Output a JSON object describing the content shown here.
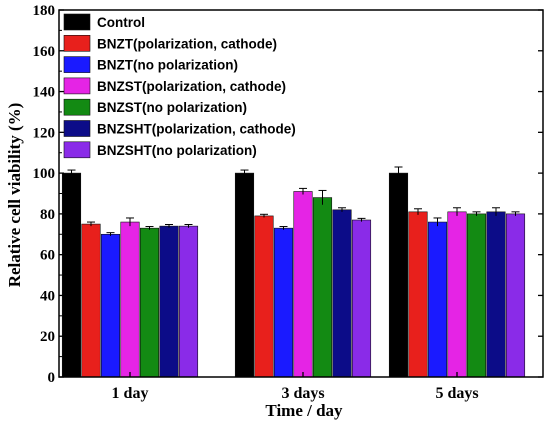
{
  "chart_data": {
    "type": "bar",
    "xlabel": "Time / day",
    "ylabel": "Relative cell viability (%)",
    "ylim": [
      0,
      180
    ],
    "yticks": [
      0,
      20,
      40,
      60,
      80,
      100,
      120,
      140,
      160,
      180
    ],
    "grid": false,
    "legend_position": "top-left",
    "categories": [
      "1 day",
      "3 days",
      "5 days"
    ],
    "series": [
      {
        "name": "Control",
        "color": "#000000",
        "values": [
          100,
          100,
          100
        ],
        "errors": [
          1.5,
          1.5,
          3
        ]
      },
      {
        "name": "BNZT(polarization, cathode)",
        "color": "#e8201c",
        "values": [
          75,
          79,
          81
        ],
        "errors": [
          1,
          0.8,
          1.5
        ]
      },
      {
        "name": "BNZT(no polarization)",
        "color": "#1a1aff",
        "values": [
          70,
          73,
          76
        ],
        "errors": [
          0.8,
          0.8,
          2
        ]
      },
      {
        "name": "BNZST(polarization, cathode)",
        "color": "#e524e5",
        "values": [
          76,
          91,
          81
        ],
        "errors": [
          2,
          1.5,
          2
        ]
      },
      {
        "name": "BNZST(no polarization)",
        "color": "#138a13",
        "values": [
          73,
          88,
          80
        ],
        "errors": [
          0.8,
          3.5,
          1
        ]
      },
      {
        "name": "BNZSHT(polarization, cathode)",
        "color": "#0c0c88",
        "values": [
          74,
          82,
          81
        ],
        "errors": [
          0.8,
          1,
          2
        ]
      },
      {
        "name": "BNZSHT(no polarization)",
        "color": "#8a2be8",
        "values": [
          74,
          77,
          80
        ],
        "errors": [
          0.8,
          0.8,
          1
        ]
      }
    ]
  }
}
